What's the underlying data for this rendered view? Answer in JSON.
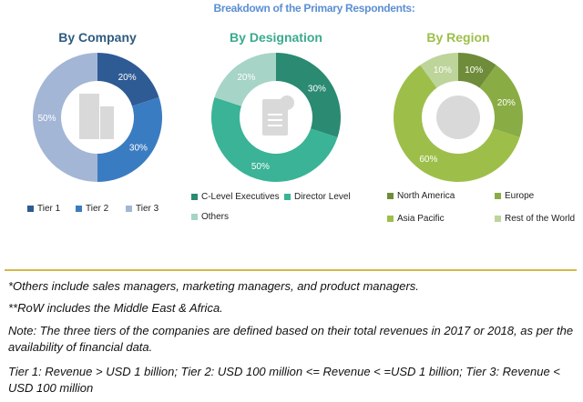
{
  "title": "Breakdown of the Primary Respondents:",
  "chart_data": [
    {
      "type": "pie",
      "donut": true,
      "title": "By Company",
      "title_color": "#2e5b80",
      "categories": [
        "Tier 1",
        "Tier 2",
        "Tier 3"
      ],
      "values": [
        20,
        30,
        50
      ],
      "labels": [
        "20%",
        "30%",
        "50%"
      ],
      "colors": [
        "#2e5b94",
        "#3a7cc2",
        "#a4b6d6"
      ],
      "center_icon": "building-icon",
      "legend": "bottom"
    },
    {
      "type": "pie",
      "donut": true,
      "title": "By Designation",
      "title_color": "#3aaa8e",
      "categories": [
        "C-Level Executives",
        "Director Level",
        "Others"
      ],
      "values": [
        30,
        50,
        20
      ],
      "labels": [
        "30%",
        "50%",
        "20%"
      ],
      "colors": [
        "#2a8a72",
        "#3ab397",
        "#a6d4c6"
      ],
      "center_icon": "document-icon",
      "legend": "bottom"
    },
    {
      "type": "pie",
      "donut": true,
      "title": "By Region",
      "title_color": "#9dbf4a",
      "categories": [
        "North America",
        "Europe",
        "Asia Pacific",
        "Rest of the World"
      ],
      "values": [
        10,
        20,
        60,
        10
      ],
      "labels": [
        "10%",
        "20%",
        "60%",
        "10%"
      ],
      "colors": [
        "#6e8c3a",
        "#8aac44",
        "#9dbf4a",
        "#bdd49a"
      ],
      "center_icon": "globe-icon",
      "legend": "bottom"
    }
  ],
  "notes": [
    "*Others include sales managers, marketing managers, and product managers.",
    "**RoW includes the Middle East & Africa.",
    "Note: The three tiers of the companies are defined based on their total revenues in 2017 or 2018, as per the availability of financial data.",
    "Tier 1: Revenue > USD 1 billion; Tier 2: USD 100 million <= Revenue < =USD 1 billion; Tier 3: Revenue < USD 100 million"
  ]
}
